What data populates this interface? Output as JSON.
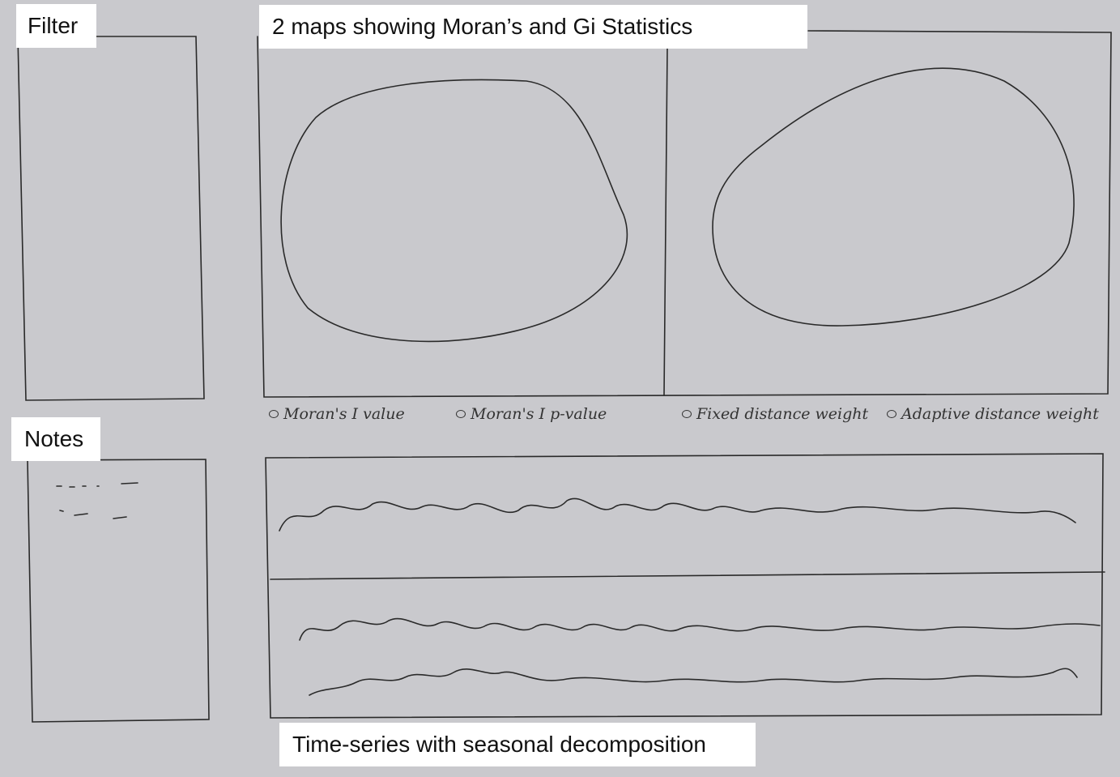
{
  "labels": {
    "filter": "Filter",
    "maps_title": "2 maps showing Moran’s and Gi Statistics",
    "notes": "Notes",
    "timeseries_title": "Time-series with seasonal decomposition"
  },
  "options": [
    {
      "label": "Moran's I value",
      "icon": "radio-icon"
    },
    {
      "label": "Moran's I p-value",
      "icon": "radio-icon"
    },
    {
      "label": "Fixed distance weight",
      "icon": "radio-icon"
    },
    {
      "label": "Adaptive distance weight",
      "icon": "radio-icon"
    }
  ],
  "colors": {
    "background": "#c9c9cd",
    "ink": "#333333",
    "label_bg": "#ffffff"
  }
}
